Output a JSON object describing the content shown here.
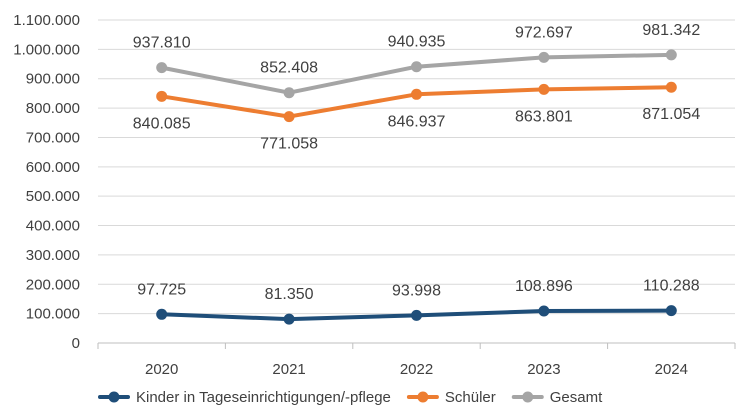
{
  "chart_data": {
    "type": "line",
    "categories": [
      "2020",
      "2021",
      "2022",
      "2023",
      "2024"
    ],
    "series": [
      {
        "name": "Kinder in Tageseinrichtigungen/-pflege",
        "values": [
          97725,
          81350,
          93998,
          108896,
          110288
        ],
        "labels": [
          "97.725",
          "81.350",
          "93.998",
          "108.896",
          "110.288"
        ],
        "color": "#1f4e79",
        "label_position": "above"
      },
      {
        "name": "Schüler",
        "values": [
          840085,
          771058,
          846937,
          863801,
          871054
        ],
        "labels": [
          "840.085",
          "771.058",
          "846.937",
          "863.801",
          "871.054"
        ],
        "color": "#ed7d31",
        "label_position": "below"
      },
      {
        "name": "Gesamt",
        "values": [
          937810,
          852408,
          940935,
          972697,
          981342
        ],
        "labels": [
          "937.810",
          "852.408",
          "940.935",
          "972.697",
          "981.342"
        ],
        "color": "#a5a5a5",
        "label_position": "above"
      }
    ],
    "y_ticks": [
      0,
      100000,
      200000,
      300000,
      400000,
      500000,
      600000,
      700000,
      800000,
      900000,
      1000000,
      1100000
    ],
    "y_tick_labels": [
      "0",
      "100.000",
      "200.000",
      "300.000",
      "400.000",
      "500.000",
      "600.000",
      "700.000",
      "800.000",
      "900.000",
      "1.000.000",
      "1.100.000"
    ],
    "ylim": [
      0,
      1100000
    ],
    "grid": true,
    "legend_position": "bottom",
    "title": "",
    "xlabel": "",
    "ylabel": ""
  }
}
